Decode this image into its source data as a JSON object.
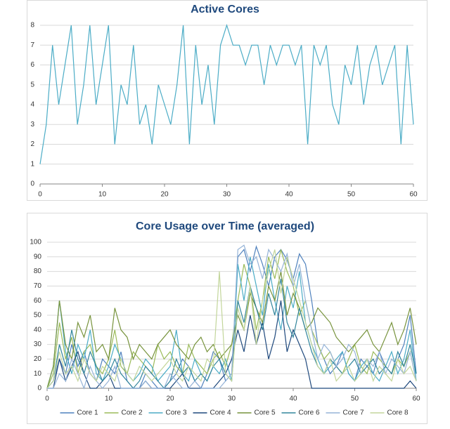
{
  "chart_data": [
    {
      "type": "line",
      "title": "Active Cores",
      "x": [
        0,
        1,
        2,
        3,
        4,
        5,
        6,
        7,
        8,
        9,
        10,
        11,
        12,
        13,
        14,
        15,
        16,
        17,
        18,
        19,
        20,
        21,
        22,
        23,
        24,
        25,
        26,
        27,
        28,
        29,
        30,
        31,
        32,
        33,
        34,
        35,
        36,
        37,
        38,
        39,
        40,
        41,
        42,
        43,
        44,
        45,
        46,
        47,
        48,
        49,
        50,
        51,
        52,
        53,
        54,
        55,
        56,
        57,
        58,
        59,
        60
      ],
      "values": [
        1,
        3,
        7,
        4,
        6,
        8,
        3,
        5,
        8,
        4,
        6,
        8,
        2,
        5,
        4,
        7,
        3,
        4,
        2,
        5,
        4,
        3,
        5,
        8,
        2,
        7,
        4,
        6,
        3,
        7,
        8,
        7,
        7,
        6,
        7,
        7,
        5,
        7,
        6,
        7,
        7,
        6,
        7,
        2,
        7,
        6,
        7,
        4,
        3,
        6,
        5,
        7,
        4,
        6,
        7,
        5,
        6,
        7,
        2,
        7,
        3
      ],
      "color": "#4bacc6",
      "xlim": [
        0,
        60
      ],
      "xticks": [
        0,
        10,
        20,
        30,
        40,
        50,
        60
      ],
      "ylim": [
        0,
        8
      ],
      "yticks": [
        0,
        1,
        2,
        3,
        4,
        5,
        6,
        7,
        8
      ],
      "grid": true
    },
    {
      "type": "line",
      "title": "Core Usage over Time (averaged)",
      "x": [
        0,
        1,
        2,
        3,
        4,
        5,
        6,
        7,
        8,
        9,
        10,
        11,
        12,
        13,
        14,
        15,
        16,
        17,
        18,
        19,
        20,
        21,
        22,
        23,
        24,
        25,
        26,
        27,
        28,
        29,
        30,
        31,
        32,
        33,
        34,
        35,
        36,
        37,
        38,
        39,
        40,
        41,
        42,
        43,
        44,
        45,
        46,
        47,
        48,
        49,
        50,
        51,
        52,
        53,
        54,
        55,
        56,
        57,
        58,
        59,
        60
      ],
      "series": [
        {
          "name": "Core 1",
          "color": "#4f81bd",
          "values": [
            0,
            5,
            20,
            10,
            30,
            15,
            25,
            10,
            5,
            20,
            15,
            10,
            25,
            5,
            0,
            0,
            10,
            5,
            0,
            0,
            5,
            10,
            20,
            15,
            5,
            0,
            10,
            25,
            20,
            5,
            10,
            90,
            95,
            80,
            97,
            85,
            70,
            90,
            95,
            88,
            75,
            92,
            85,
            60,
            30,
            20,
            10,
            15,
            25,
            10,
            5,
            20,
            15,
            10,
            25,
            15,
            10,
            20,
            30,
            50,
            10
          ]
        },
        {
          "name": "Core 2",
          "color": "#9bbb59",
          "values": [
            0,
            10,
            45,
            20,
            35,
            10,
            25,
            30,
            15,
            10,
            20,
            40,
            15,
            10,
            25,
            20,
            15,
            10,
            30,
            20,
            25,
            15,
            10,
            30,
            20,
            15,
            10,
            20,
            25,
            15,
            30,
            60,
            85,
            70,
            40,
            60,
            90,
            75,
            95,
            80,
            70,
            50,
            60,
            40,
            30,
            20,
            25,
            15,
            10,
            20,
            30,
            15,
            10,
            25,
            20,
            15,
            10,
            20,
            15,
            25,
            5
          ]
        },
        {
          "name": "Core 3",
          "color": "#4bacc6",
          "values": [
            0,
            15,
            60,
            25,
            10,
            30,
            20,
            40,
            10,
            5,
            15,
            30,
            20,
            10,
            5,
            10,
            20,
            15,
            5,
            10,
            15,
            40,
            10,
            5,
            20,
            10,
            5,
            15,
            10,
            20,
            5,
            85,
            60,
            90,
            70,
            50,
            85,
            60,
            40,
            70,
            55,
            80,
            45,
            30,
            20,
            10,
            15,
            20,
            25,
            10,
            5,
            15,
            20,
            10,
            5,
            15,
            25,
            10,
            20,
            40,
            5
          ]
        },
        {
          "name": "Core 4",
          "color": "#1f497d",
          "values": [
            0,
            0,
            20,
            5,
            15,
            25,
            10,
            0,
            0,
            5,
            10,
            0,
            0,
            0,
            0,
            0,
            5,
            0,
            0,
            0,
            0,
            5,
            10,
            0,
            0,
            0,
            0,
            0,
            5,
            10,
            20,
            40,
            25,
            50,
            30,
            45,
            20,
            35,
            60,
            25,
            40,
            30,
            20,
            0,
            0,
            0,
            0,
            0,
            0,
            0,
            0,
            0,
            0,
            0,
            0,
            0,
            0,
            0,
            0,
            5,
            0
          ]
        },
        {
          "name": "Core 5",
          "color": "#77933c",
          "values": [
            0,
            15,
            60,
            30,
            20,
            45,
            35,
            50,
            25,
            30,
            20,
            55,
            40,
            35,
            20,
            30,
            25,
            20,
            30,
            35,
            40,
            30,
            25,
            20,
            30,
            35,
            25,
            30,
            20,
            25,
            30,
            50,
            40,
            65,
            55,
            45,
            70,
            60,
            80,
            50,
            65,
            55,
            40,
            45,
            55,
            50,
            45,
            35,
            30,
            25,
            30,
            35,
            40,
            30,
            25,
            35,
            45,
            30,
            40,
            55,
            30
          ]
        },
        {
          "name": "Core 6",
          "color": "#31859c",
          "values": [
            0,
            5,
            30,
            15,
            40,
            20,
            10,
            25,
            15,
            5,
            10,
            20,
            10,
            5,
            0,
            5,
            15,
            10,
            5,
            0,
            5,
            20,
            10,
            15,
            5,
            10,
            5,
            15,
            20,
            10,
            5,
            60,
            45,
            70,
            55,
            40,
            65,
            50,
            75,
            45,
            35,
            55,
            40,
            25,
            15,
            10,
            20,
            15,
            10,
            15,
            20,
            10,
            15,
            20,
            10,
            15,
            10,
            25,
            15,
            30,
            10
          ]
        },
        {
          "name": "Core 7",
          "color": "#95b3d7",
          "values": [
            0,
            0,
            10,
            5,
            20,
            10,
            0,
            15,
            5,
            0,
            5,
            15,
            0,
            0,
            0,
            0,
            5,
            0,
            0,
            0,
            10,
            5,
            0,
            0,
            5,
            0,
            0,
            0,
            0,
            5,
            10,
            95,
            98,
            85,
            90,
            75,
            95,
            88,
            80,
            92,
            70,
            85,
            60,
            40,
            20,
            30,
            25,
            15,
            20,
            30,
            25,
            10,
            20,
            15,
            25,
            10,
            20,
            15,
            10,
            25,
            5
          ]
        },
        {
          "name": "Core 8",
          "color": "#c3d69b",
          "values": [
            0,
            5,
            25,
            10,
            15,
            5,
            20,
            10,
            5,
            15,
            10,
            5,
            20,
            10,
            5,
            15,
            10,
            5,
            10,
            15,
            20,
            10,
            5,
            15,
            10,
            5,
            20,
            15,
            80,
            10,
            5,
            55,
            40,
            70,
            30,
            60,
            80,
            95,
            65,
            90,
            75,
            60,
            45,
            30,
            15,
            10,
            20,
            5,
            10,
            15,
            5,
            10,
            20,
            5,
            15,
            10,
            5,
            20,
            10,
            15,
            5
          ]
        }
      ],
      "xlim": [
        0,
        60
      ],
      "xticks": [
        0,
        10,
        20,
        30,
        40,
        50,
        60
      ],
      "ylim": [
        0,
        100
      ],
      "yticks": [
        0,
        10,
        20,
        30,
        40,
        50,
        60,
        70,
        80,
        90,
        100
      ],
      "grid": true,
      "legend": "bottom"
    }
  ]
}
